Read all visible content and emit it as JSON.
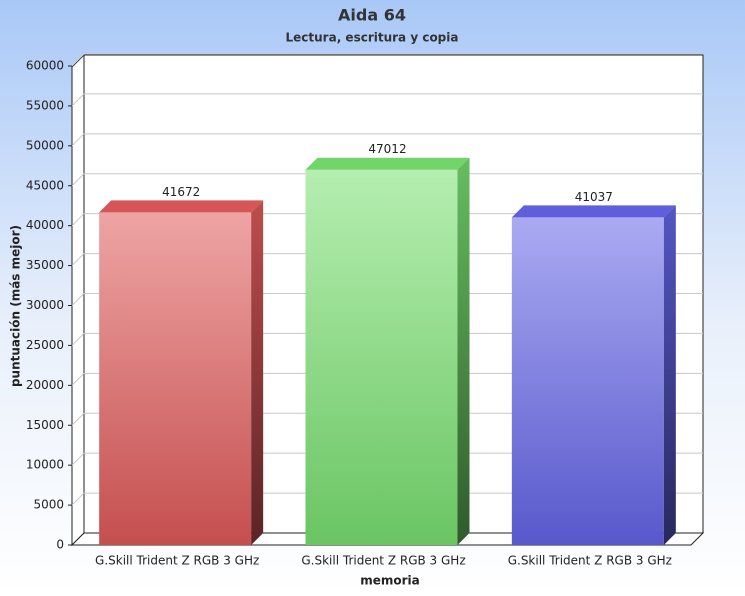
{
  "chart_data": {
    "type": "bar",
    "title": "Aida 64",
    "subtitle": "Lectura, escritura y copia",
    "x_label": "memoria",
    "y_label": "puntuación (más mejor)",
    "categories": [
      "G.Skill Trident Z RGB 3 GHz",
      "G.Skill Trident Z RGB 3 GHz",
      "G.Skill Trident Z RGB 3 GHz"
    ],
    "values": [
      41672,
      47012,
      41037
    ],
    "colors": [
      "#e05a5a",
      "#78e070",
      "#6464e8"
    ],
    "ylim": [
      0,
      60000
    ],
    "yticks": [
      0,
      5000,
      10000,
      15000,
      20000,
      25000,
      30000,
      35000,
      40000,
      45000,
      50000,
      55000,
      60000
    ],
    "grid": true
  }
}
